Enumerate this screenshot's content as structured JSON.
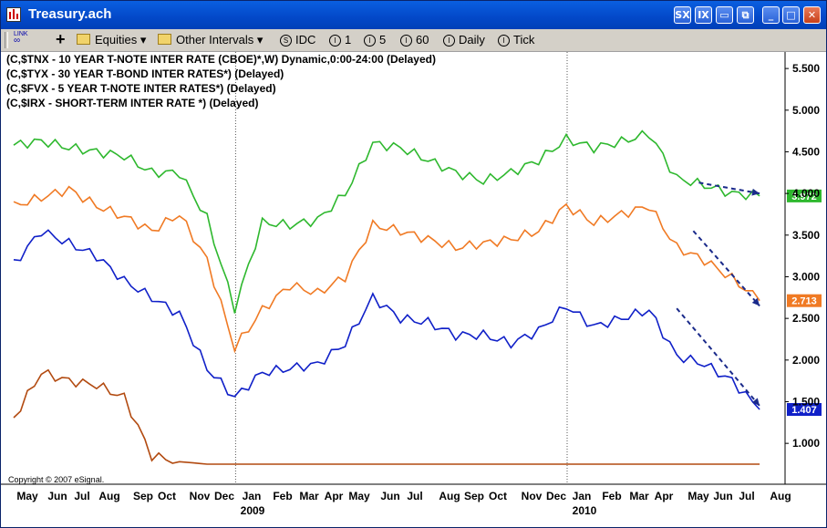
{
  "window": {
    "title": "Treasury.ach"
  },
  "toolbar": {
    "link_label": "LINK",
    "add_label": "+",
    "equities_label": "Equities ▾",
    "other_intervals_label": "Other Intervals ▾",
    "intervals": [
      "IDC",
      "1",
      "5",
      "60",
      "Daily",
      "Tick"
    ]
  },
  "copyright": "Copyright © 2007 eSignal.",
  "chart_data": {
    "type": "line",
    "legend": [
      "(C,$TNX - 10 YEAR T-NOTE INTER RATE (CBOE)*,W) Dynamic,0:00-24:00 (Delayed)",
      "(C,$TYX - 30 YEAR T-BOND INTER RATES*)  (Delayed)",
      "(C,$FVX - 5 YEAR T-NOTE INTER RATES*)  (Delayed)",
      "(C,$IRX - SHORT-TERM INTER RATE *)  (Delayed)"
    ],
    "x_labels": [
      "May",
      "Jun",
      "Jul",
      "Aug",
      "Sep",
      "Oct",
      "Nov",
      "Dec",
      "Jan",
      "Feb",
      "Mar",
      "Apr",
      "May",
      "Jun",
      "Jul",
      "Aug",
      "Sep",
      "Oct",
      "Nov",
      "Dec",
      "Jan",
      "Feb",
      "Mar",
      "Apr",
      "May",
      "Jun",
      "Jul",
      "Aug"
    ],
    "year_labels": [
      "2009",
      "2010"
    ],
    "ylim": [
      0.75,
      5.6
    ],
    "y_ticks": [
      "1.000",
      "1.500",
      "2.000",
      "2.500",
      "3.000",
      "3.500",
      "4.000",
      "4.500",
      "5.000",
      "5.500"
    ],
    "grid": "dotted vertical at Jan 2009 and Jan 2010",
    "series": [
      {
        "name": "$TYX",
        "color": "#2eb82e",
        "last": "3.972",
        "x": [
          0,
          1,
          2,
          3,
          4,
          5,
          6,
          7,
          8,
          9,
          10,
          11,
          12,
          13,
          14,
          15,
          16,
          17,
          18,
          19,
          20,
          21,
          22,
          23,
          24,
          25,
          26,
          27
        ],
        "values": [
          4.58,
          4.63,
          4.55,
          4.5,
          4.45,
          4.25,
          4.25,
          3.7,
          2.62,
          3.65,
          3.62,
          3.68,
          4.0,
          4.6,
          4.55,
          4.4,
          4.25,
          4.15,
          4.25,
          4.4,
          4.65,
          4.55,
          4.62,
          4.72,
          4.18,
          4.1,
          4.0,
          3.97
        ]
      },
      {
        "name": "$TNX",
        "color": "#f07a24",
        "last": "2.713",
        "x": [
          0,
          1,
          2,
          3,
          4,
          5,
          6,
          7,
          8,
          9,
          10,
          11,
          12,
          13,
          14,
          15,
          16,
          17,
          18,
          19,
          20,
          21,
          22,
          23,
          24,
          25,
          26,
          27
        ],
        "values": [
          3.85,
          3.95,
          4.05,
          3.85,
          3.72,
          3.55,
          3.75,
          3.2,
          2.15,
          2.6,
          2.9,
          2.8,
          3.0,
          3.62,
          3.55,
          3.45,
          3.35,
          3.4,
          3.45,
          3.55,
          3.85,
          3.65,
          3.75,
          3.85,
          3.35,
          3.2,
          2.98,
          2.713
        ]
      },
      {
        "name": "$FVX",
        "color": "#1020c8",
        "last": "1.407",
        "x": [
          0,
          1,
          2,
          3,
          4,
          5,
          6,
          7,
          8,
          9,
          10,
          11,
          12,
          13,
          14,
          15,
          16,
          17,
          18,
          19,
          20,
          21,
          22,
          23,
          24,
          25,
          26,
          27
        ],
        "values": [
          3.15,
          3.55,
          3.4,
          3.25,
          2.95,
          2.75,
          2.55,
          1.9,
          1.55,
          1.85,
          1.9,
          1.95,
          2.2,
          2.75,
          2.5,
          2.45,
          2.3,
          2.3,
          2.2,
          2.35,
          2.65,
          2.4,
          2.5,
          2.6,
          2.05,
          1.95,
          1.75,
          1.407
        ]
      },
      {
        "name": "$IRX",
        "color": "#b24a10",
        "last": "",
        "x": [
          0,
          1,
          2,
          3,
          4,
          5,
          6,
          7,
          8,
          9,
          10,
          11,
          12,
          13,
          14,
          15,
          16,
          17,
          18,
          19,
          20,
          21,
          22,
          23,
          24,
          25,
          26,
          27
        ],
        "values": [
          1.3,
          1.85,
          1.75,
          1.7,
          1.55,
          0.85,
          0.78,
          0.75,
          0.75,
          0.75,
          0.75,
          0.75,
          0.75,
          0.75,
          0.75,
          0.75,
          0.75,
          0.75,
          0.75,
          0.75,
          0.75,
          0.75,
          0.75,
          0.75,
          0.75,
          0.75,
          0.75,
          0.75
        ]
      }
    ],
    "arrows": [
      {
        "series": "$TYX",
        "from": [
          24.8,
          4.13
        ],
        "to": [
          27.0,
          4.0
        ]
      },
      {
        "series": "$TNX",
        "from": [
          24.6,
          3.55
        ],
        "to": [
          27.0,
          2.65
        ]
      },
      {
        "series": "$FVX",
        "from": [
          24.0,
          2.62
        ],
        "to": [
          27.0,
          1.45
        ]
      }
    ]
  }
}
